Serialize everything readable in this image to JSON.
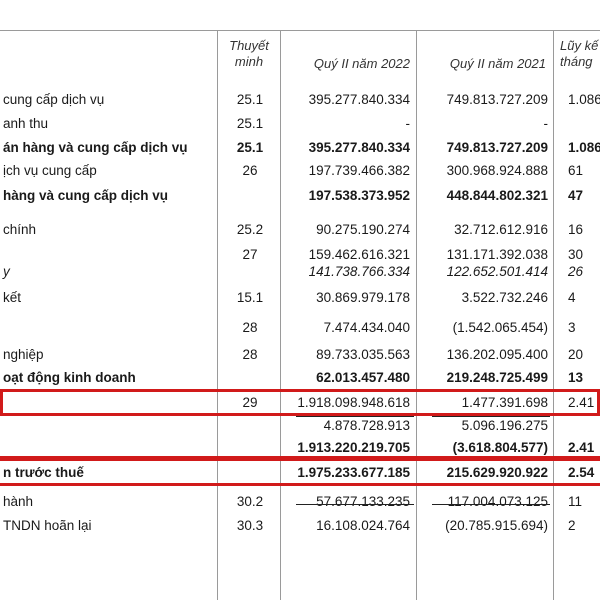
{
  "header": {
    "note_col": "Thuyết minh",
    "col_2022": "Quý II năm 2022",
    "col_2021": "Quý II năm 2021",
    "col_acc": "Lũy kế tháng"
  },
  "rows": [
    {
      "label": "cung cấp dịch vụ",
      "note": "25.1",
      "v2022": "395.277.840.334",
      "v2021": "749.813.727.209",
      "acc": "1.086",
      "bold": false,
      "italic": false
    },
    {
      "label": "anh thu",
      "note": "25.1",
      "v2022": "-",
      "v2021": "-",
      "acc": "",
      "bold": false,
      "italic": false
    },
    {
      "label": "án hàng và cung cấp dịch vụ",
      "note": "25.1",
      "v2022": "395.277.840.334",
      "v2021": "749.813.727.209",
      "acc": "1.086",
      "bold": true,
      "italic": false
    },
    {
      "label": "ịch vụ cung cấp",
      "note": "26",
      "v2022": "197.739.466.382",
      "v2021": "300.968.924.888",
      "acc": "61",
      "bold": false,
      "italic": false
    },
    {
      "label": "hàng và cung cấp dịch vụ",
      "note": "",
      "v2022": "197.538.373.952",
      "v2021": "448.844.802.321",
      "acc": "47",
      "bold": true,
      "italic": false
    },
    {
      "label": "chính",
      "note": "25.2",
      "v2022": "90.275.190.274",
      "v2021": "32.712.612.916",
      "acc": "16",
      "bold": false,
      "italic": false
    },
    {
      "label": "",
      "note": "27",
      "v2022": "159.462.616.321",
      "v2021": "131.171.392.038",
      "acc": "30",
      "bold": false,
      "italic": false
    },
    {
      "label": "y",
      "note": "",
      "v2022": "141.738.766.334",
      "v2021": "122.652.501.414",
      "acc": "26",
      "bold": false,
      "italic": true
    },
    {
      "label": "kết",
      "note": "15.1",
      "v2022": "30.869.979.178",
      "v2021": "3.522.732.246",
      "acc": "4",
      "bold": false,
      "italic": false
    },
    {
      "label": "",
      "note": "28",
      "v2022": "7.474.434.040",
      "v2021": "(1.542.065.454)",
      "acc": "3",
      "bold": false,
      "italic": false
    },
    {
      "label": "nghiệp",
      "note": "28",
      "v2022": "89.733.035.563",
      "v2021": "136.202.095.400",
      "acc": "20",
      "bold": false,
      "italic": false
    },
    {
      "label": "oạt động kinh doanh",
      "note": "",
      "v2022": "62.013.457.480",
      "v2021": "219.248.725.499",
      "acc": "13",
      "bold": true,
      "italic": false
    },
    {
      "label": "",
      "note": "29",
      "v2022": "1.918.098.948.618",
      "v2021": "1.477.391.698",
      "acc": "2.41",
      "bold": false,
      "italic": false
    },
    {
      "label": "",
      "note": "",
      "v2022": "4.878.728.913",
      "v2021": "5.096.196.275",
      "acc": "",
      "bold": false,
      "italic": false
    },
    {
      "label": "",
      "note": "",
      "v2022": "1.913.220.219.705",
      "v2021": "(3.618.804.577)",
      "acc": "2.41",
      "bold": true,
      "italic": false
    },
    {
      "label": "n trước thuế",
      "note": "",
      "v2022": "1.975.233.677.185",
      "v2021": "215.629.920.922",
      "acc": "2.54",
      "bold": true,
      "italic": false
    },
    {
      "label": "hành",
      "note": "30.2",
      "v2022": "57.677.133.235",
      "v2021": "117.004.073.125",
      "acc": "11",
      "bold": false,
      "italic": false
    },
    {
      "label": "TNDN hoãn lại",
      "note": "30.3",
      "v2022": "16.108.024.764",
      "v2021": "(20.785.915.694)",
      "acc": "2",
      "bold": false,
      "italic": false
    }
  ],
  "highlight_color": "#d11a1a"
}
